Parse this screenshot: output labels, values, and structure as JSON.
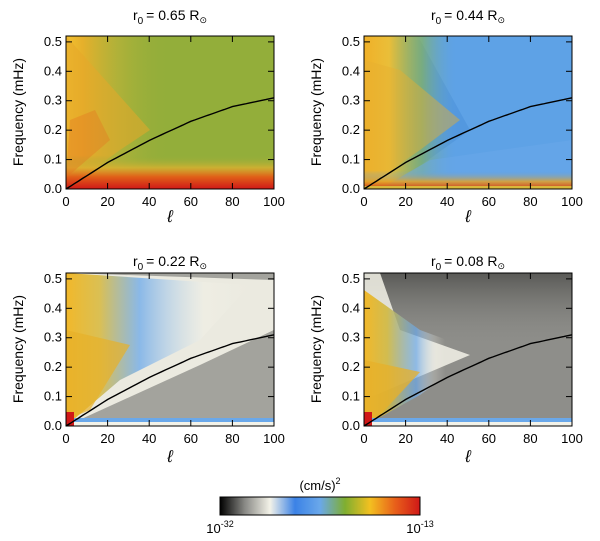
{
  "colorbar": {
    "label": "(cm/s)",
    "label_sup": "2",
    "min_base": "10",
    "min_exp": "-32",
    "max_base": "10",
    "max_exp": "-13",
    "stops": [
      "#000000",
      "#8a8a86",
      "#f3f2e8",
      "#3b82e6",
      "#6aa8ea",
      "#7fae30",
      "#f3c020",
      "#e8601a",
      "#d01818"
    ]
  },
  "chart_data": [
    {
      "type": "heatmap",
      "title_prefix": "r",
      "title_sub": "0",
      "title_value": "= 0.65 R",
      "title_symbol": "⊙",
      "xlabel": "ℓ",
      "ylabel": "Frequency (mHz)",
      "xlim": [
        0,
        100
      ],
      "ylim": [
        0,
        0.52
      ],
      "xticks": [
        "0",
        "20",
        "40",
        "60",
        "80",
        "100"
      ],
      "yticks": [
        "0.0",
        "0.1",
        "0.2",
        "0.3",
        "0.4",
        "0.5"
      ],
      "background": "#93ae3a",
      "curve": {
        "x": [
          0,
          20,
          40,
          60,
          80,
          100
        ],
        "y": [
          0.0,
          0.09,
          0.165,
          0.23,
          0.28,
          0.31
        ]
      }
    },
    {
      "type": "heatmap",
      "title_prefix": "r",
      "title_sub": "0",
      "title_value": "= 0.44 R",
      "title_symbol": "⊙",
      "xlabel": "ℓ",
      "ylabel": "Frequency (mHz)",
      "xlim": [
        0,
        100
      ],
      "ylim": [
        0,
        0.52
      ],
      "xticks": [
        "0",
        "20",
        "40",
        "60",
        "80",
        "100"
      ],
      "yticks": [
        "0.0",
        "0.1",
        "0.2",
        "0.3",
        "0.4",
        "0.5"
      ],
      "background": "#5ea2e6",
      "curve": {
        "x": [
          0,
          20,
          40,
          60,
          80,
          100
        ],
        "y": [
          0.0,
          0.09,
          0.165,
          0.23,
          0.28,
          0.31
        ]
      }
    },
    {
      "type": "heatmap",
      "title_prefix": "r",
      "title_sub": "0",
      "title_value": "= 0.22 R",
      "title_symbol": "⊙",
      "xlabel": "ℓ",
      "ylabel": "Frequency (mHz)",
      "xlim": [
        0,
        100
      ],
      "ylim": [
        0,
        0.52
      ],
      "xticks": [
        "0",
        "20",
        "40",
        "60",
        "80",
        "100"
      ],
      "yticks": [
        "0.0",
        "0.1",
        "0.2",
        "0.3",
        "0.4",
        "0.5"
      ],
      "background": "#a3a39d",
      "curve": {
        "x": [
          0,
          20,
          40,
          60,
          80,
          100
        ],
        "y": [
          0.0,
          0.09,
          0.165,
          0.23,
          0.28,
          0.31
        ]
      }
    },
    {
      "type": "heatmap",
      "title_prefix": "r",
      "title_sub": "0",
      "title_value": "= 0.08 R",
      "title_symbol": "⊙",
      "xlabel": "ℓ",
      "ylabel": "Frequency (mHz)",
      "xlim": [
        0,
        100
      ],
      "ylim": [
        0,
        0.52
      ],
      "xticks": [
        "0",
        "20",
        "40",
        "60",
        "80",
        "100"
      ],
      "yticks": [
        "0.0",
        "0.1",
        "0.2",
        "0.3",
        "0.4",
        "0.5"
      ],
      "background": "#8e8e8a",
      "curve": {
        "x": [
          0,
          20,
          40,
          60,
          80,
          100
        ],
        "y": [
          0.0,
          0.09,
          0.165,
          0.23,
          0.28,
          0.31
        ]
      }
    }
  ]
}
